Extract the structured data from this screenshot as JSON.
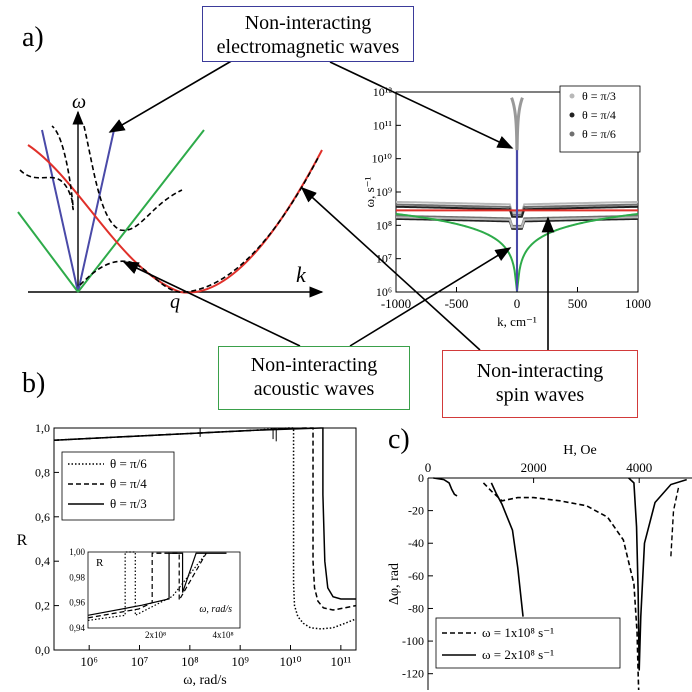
{
  "panel_labels": {
    "a": "a)",
    "b": "b)",
    "c": "c)"
  },
  "callouts": {
    "em": {
      "line1": "Non-interacting",
      "line2": "electromagnetic waves",
      "border": "#3b3b9a"
    },
    "acoustic": {
      "line1": "Non-interacting",
      "line2": "acoustic waves",
      "border": "#3aa04a"
    },
    "spin": {
      "line1": "Non-interacting",
      "line2": "spin waves",
      "border": "#d23a3a"
    }
  },
  "sketch": {
    "omega_label": "ω",
    "k_label": "k",
    "q_label": "q"
  },
  "colors": {
    "em": "#4a4aa8",
    "acoustic": "#2eab4a",
    "spin": "#e0302a",
    "hybrid": "#000000"
  },
  "chart_data": [
    {
      "type": "line",
      "panel": "a-right",
      "xlabel": "k, cm⁻¹",
      "ylabel": "ω, s⁻¹",
      "xlim": [
        -1000,
        1000
      ],
      "ylim": [
        1000000,
        1000000000000
      ],
      "yscale": "log",
      "xticks": [
        "-1000",
        "-500",
        "0",
        "500",
        "1000"
      ],
      "yticks": [
        "10⁶",
        "10⁷",
        "10⁸",
        "10⁹",
        "10¹⁰",
        "10¹¹",
        "10¹²"
      ],
      "legend": [
        "θ = π/3",
        "θ = π/4",
        "θ = π/6"
      ],
      "legend_position": "top-right",
      "series": [
        {
          "name": "θ = π/3",
          "color": "#b8b8b8"
        },
        {
          "name": "θ = π/4",
          "color": "#222222"
        },
        {
          "name": "θ = π/6",
          "color": "#707070"
        }
      ]
    },
    {
      "type": "line",
      "panel": "b",
      "xlabel": "ω, rad/s",
      "ylabel": "R",
      "xscale": "log",
      "xlim": [
        200000,
        200000000000
      ],
      "ylim": [
        0,
        1
      ],
      "xticks": [
        "10⁶",
        "10⁷",
        "10⁸",
        "10⁹",
        "10¹⁰",
        "10¹¹"
      ],
      "yticks": [
        "0,0",
        "0,2",
        "0,4",
        "0,6",
        "0,8",
        "1,0"
      ],
      "legend": [
        "θ = π/6",
        "θ = π/4",
        "θ = π/3"
      ],
      "legend_position": "middle-left",
      "series": [
        {
          "name": "θ = π/6",
          "style": "dotted",
          "x": [
            200000.0,
            2000000000.0,
            9000000000.0,
            11500000000.0,
            11500000000.0,
            12000000000.0,
            14000000000.0,
            18000000000.0,
            25000000000.0,
            40000000000.0,
            70000000000.0,
            120000000000.0,
            200000000000.0
          ],
          "y": [
            0.945,
            0.99,
            1.0,
            1.0,
            0.3,
            0.2,
            0.15,
            0.12,
            0.1,
            0.095,
            0.1,
            0.12,
            0.14
          ]
        },
        {
          "name": "θ = π/4",
          "style": "dashed",
          "x": [
            200000.0,
            2000000000.0,
            20000000000.0,
            28000000000.0,
            28000000000.0,
            30000000000.0,
            35000000000.0,
            45000000000.0,
            70000000000.0,
            120000000000.0,
            200000000000.0
          ],
          "y": [
            0.945,
            0.99,
            1.0,
            1.0,
            0.4,
            0.28,
            0.22,
            0.19,
            0.18,
            0.19,
            0.2
          ]
        },
        {
          "name": "θ = π/3",
          "style": "solid",
          "x": [
            200000.0,
            2000000000.0,
            40000000000.0,
            44000000000.0,
            44000000000.0,
            48000000000.0,
            55000000000.0,
            70000000000.0,
            100000000000.0,
            150000000000.0,
            200000000000.0
          ],
          "y": [
            0.945,
            0.99,
            1.0,
            1.0,
            0.7,
            0.4,
            0.28,
            0.24,
            0.23,
            0.23,
            0.23
          ]
        }
      ],
      "inset": {
        "xlabel": "ω, rad/s",
        "ylabel": "R",
        "xlim": [
          0,
          450000000
        ],
        "ylim": [
          0.94,
          1.0
        ],
        "xticks": [
          "2x10⁸",
          "4x10⁸"
        ],
        "yticks": [
          "0,94",
          "0,96",
          "0,98",
          "1,00"
        ]
      }
    },
    {
      "type": "line",
      "panel": "c",
      "xlabel": "H, Oe",
      "ylabel": "Δφ, rad",
      "xlim": [
        0,
        5000
      ],
      "ylim": [
        -130,
        0
      ],
      "xticks": [
        "0",
        "2000",
        "4000"
      ],
      "yticks": [
        "0",
        "-20",
        "-40",
        "-60",
        "-80",
        "-100",
        "-120"
      ],
      "legend": [
        "ω = 1x10⁸ s⁻¹",
        "ω = 2x10⁸ s⁻¹"
      ],
      "legend_position": "bottom-left",
      "series": [
        {
          "name": "ω = 1x10⁸ s⁻¹",
          "style": "dashed",
          "x": [
            1050,
            1200,
            1400,
            1700,
            2000,
            2500,
            3000,
            3400,
            3700,
            3900,
            3960,
            3980,
            3990
          ],
          "y": [
            -3,
            -8,
            -14,
            -12,
            -12,
            -14,
            -17,
            -24,
            -38,
            -65,
            -95,
            -120,
            -130
          ]
        },
        {
          "name": "ω = 2x10⁸ s⁻¹",
          "style": "solid",
          "x": [
            100,
            300,
            400,
            450,
            500,
            550
          ],
          "y": [
            0,
            -1,
            -3,
            -7,
            -10,
            -11
          ]
        },
        {
          "name": "ω = 2x10⁸ s⁻¹",
          "style": "solid",
          "x": [
            1200,
            1300,
            1400,
            1600,
            1700,
            1800
          ],
          "y": [
            -3,
            -10,
            -16,
            -32,
            -55,
            -85
          ]
        },
        {
          "name": "ω = 2x10⁸ s⁻¹",
          "style": "solid",
          "x": [
            3800,
            3900,
            3950,
            3980,
            4000,
            4030,
            4100,
            4300,
            4600,
            4900
          ],
          "y": [
            0,
            -3,
            -30,
            -70,
            -118,
            -85,
            -40,
            -15,
            -4,
            -1
          ]
        }
      ]
    }
  ]
}
